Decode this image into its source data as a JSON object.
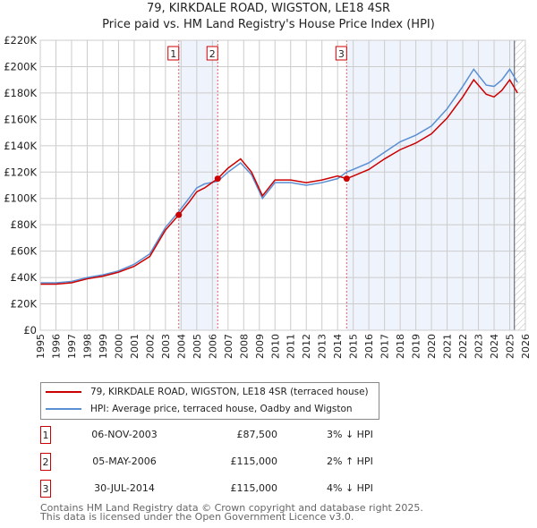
{
  "chart_data": {
    "type": "line",
    "title": "79, KIRKDALE ROAD, WIGSTON, LE18 4SR",
    "subtitle": "Price paid vs. HM Land Registry's House Price Index (HPI)",
    "xlim": [
      1995,
      2026
    ],
    "ylim": [
      0,
      220000
    ],
    "yticks": [
      "£0",
      "£20K",
      "£40K",
      "£60K",
      "£80K",
      "£100K",
      "£120K",
      "£140K",
      "£160K",
      "£180K",
      "£200K",
      "£220K"
    ],
    "xticks": [
      "1995",
      "1996",
      "1997",
      "1998",
      "1999",
      "2000",
      "2001",
      "2002",
      "2003",
      "2004",
      "2005",
      "2006",
      "2007",
      "2008",
      "2009",
      "2010",
      "2011",
      "2012",
      "2013",
      "2014",
      "2015",
      "2016",
      "2017",
      "2018",
      "2019",
      "2020",
      "2021",
      "2022",
      "2023",
      "2024",
      "2025",
      "2026"
    ],
    "grid": true,
    "series": [
      {
        "name": "79, KIRKDALE ROAD, WIGSTON, LE18 4SR (terraced house)",
        "color": "#cc0000",
        "x": [
          1995,
          1996,
          1997,
          1998,
          1999,
          2000,
          2001,
          2002,
          2003,
          2003.85,
          2004.5,
          2005,
          2005.5,
          2006.34,
          2007,
          2007.8,
          2008.5,
          2009.2,
          2010,
          2011,
          2012,
          2013,
          2014,
          2014.58,
          2015,
          2016,
          2017,
          2018,
          2019,
          2020,
          2021,
          2022,
          2022.7,
          2023.5,
          2024,
          2024.5,
          2025,
          2025.5
        ],
        "y": [
          35000,
          35000,
          36000,
          39000,
          41000,
          44000,
          48500,
          56000,
          76000,
          87500,
          97000,
          105000,
          108000,
          115000,
          123000,
          130000,
          120000,
          102000,
          114000,
          114000,
          112000,
          114000,
          117000,
          115000,
          117000,
          122000,
          130000,
          137000,
          142000,
          149000,
          161000,
          177000,
          190000,
          179000,
          177000,
          182000,
          190000,
          180000
        ]
      },
      {
        "name": "HPI: Average price, terraced house, Oadby and Wigston",
        "color": "#5b8fd4",
        "x": [
          1995,
          1996,
          1997,
          1998,
          1999,
          2000,
          2001,
          2002,
          2003,
          2003.85,
          2004.5,
          2005,
          2005.5,
          2006.34,
          2007,
          2007.8,
          2008.5,
          2009.2,
          2010,
          2011,
          2012,
          2013,
          2014,
          2014.58,
          2015,
          2016,
          2017,
          2018,
          2019,
          2020,
          2021,
          2022,
          2022.7,
          2023.5,
          2024,
          2024.5,
          2025,
          2025.5
        ],
        "y": [
          36000,
          36000,
          37000,
          40000,
          42000,
          45000,
          50000,
          58000,
          78000,
          90000,
          100000,
          108000,
          111000,
          113000,
          120000,
          127000,
          118000,
          100000,
          112000,
          112000,
          110000,
          112000,
          115000,
          120000,
          122000,
          127000,
          135000,
          143000,
          148000,
          155000,
          168000,
          185000,
          198000,
          186000,
          185000,
          190000,
          198000,
          188000
        ]
      }
    ],
    "sales": [
      {
        "label": "1",
        "x": 2003.85,
        "y": 87500,
        "date": "06-NOV-2003",
        "price": "£87,500",
        "diff": "3% ↓ HPI"
      },
      {
        "label": "2",
        "x": 2006.34,
        "y": 115000,
        "date": "05-MAY-2006",
        "price": "£115,000",
        "diff": "2% ↑ HPI"
      },
      {
        "label": "3",
        "x": 2014.58,
        "y": 115000,
        "date": "30-JUL-2014",
        "price": "£115,000",
        "diff": "4% ↓ HPI"
      }
    ],
    "hatch_from": 2025.3,
    "legend": [
      "79, KIRKDALE ROAD, WIGSTON, LE18 4SR (terraced house)",
      "HPI: Average price, terraced house, Oadby and Wigston"
    ]
  },
  "footer": [
    "Contains HM Land Registry data © Crown copyright and database right 2025.",
    "This data is licensed under the Open Government Licence v3.0."
  ]
}
